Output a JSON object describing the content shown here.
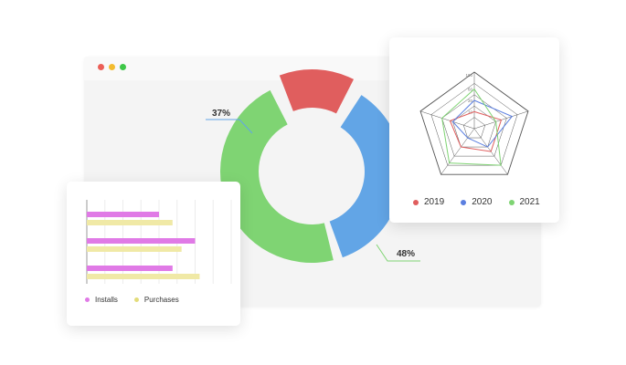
{
  "window": {
    "buttons": [
      {
        "name": "close",
        "color": "#ec5f57"
      },
      {
        "name": "minimize",
        "color": "#f3bc2f"
      },
      {
        "name": "maximize",
        "color": "#3ec748"
      }
    ]
  },
  "chart_data": [
    {
      "type": "pie",
      "variant": "donut",
      "slices": [
        {
          "value": 37,
          "label": "37%",
          "color": "#62a5e6"
        },
        {
          "value": 48,
          "label": "48%",
          "color": "#7fd473"
        },
        {
          "value": 15,
          "label": "",
          "color": "#e05e5e"
        }
      ]
    },
    {
      "type": "bar",
      "orientation": "horizontal",
      "categories": [
        "",
        "",
        ""
      ],
      "series": [
        {
          "name": "Installs",
          "color": "#e07ae6",
          "values": [
            8,
            12,
            9.5
          ]
        },
        {
          "name": "Purchases",
          "color": "#f0e9a6",
          "values": [
            9.5,
            10.5,
            12.5
          ]
        }
      ],
      "xlim": [
        0,
        16
      ],
      "grid": true,
      "legend": "bottom-left"
    },
    {
      "type": "radar",
      "axes": 5,
      "rlim": [
        0,
        100
      ],
      "tick_labels": [
        "10",
        "20",
        "60",
        "100"
      ],
      "series": [
        {
          "name": "2019",
          "color": "#e05e5e",
          "values": [
            30,
            50,
            50,
            40,
            45
          ]
        },
        {
          "name": "2020",
          "color": "#5b7fe0",
          "values": [
            50,
            70,
            40,
            20,
            40
          ]
        },
        {
          "name": "2021",
          "color": "#7fd473",
          "values": [
            70,
            40,
            80,
            75,
            60
          ]
        }
      ],
      "legend": "bottom"
    }
  ]
}
